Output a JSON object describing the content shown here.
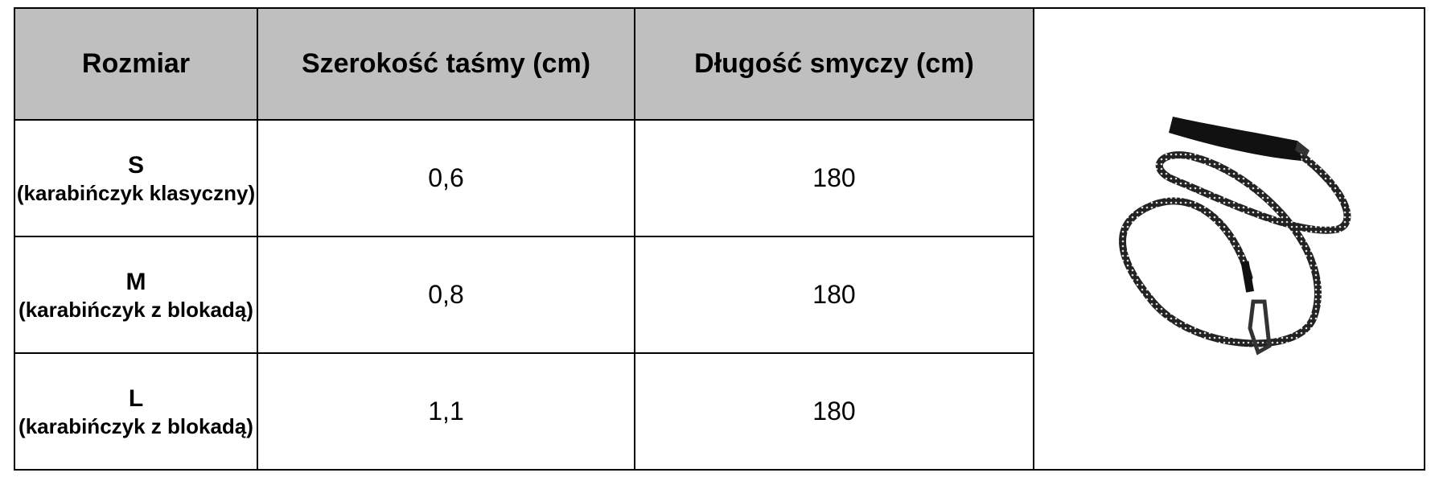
{
  "headers": [
    "Rozmiar",
    "Szerokość taśmy (cm)",
    "Długość smyczy (cm)"
  ],
  "rows": [
    {
      "size": "S",
      "note": "(karabińczyk klasyczny)",
      "width": "0,6",
      "length": "180"
    },
    {
      "size": "M",
      "note": "(karabińczyk z blokadą)",
      "width": "0,8",
      "length": "180"
    },
    {
      "size": "L",
      "note": "(karabińczyk z blokadą)",
      "width": "1,1",
      "length": "180"
    }
  ],
  "image": {
    "subject": "leash-with-carabiner"
  }
}
